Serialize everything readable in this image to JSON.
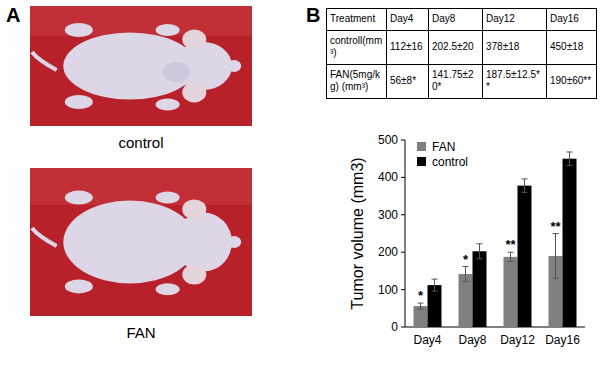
{
  "panels": [
    "A",
    "B"
  ],
  "photos": [
    {
      "caption": "control"
    },
    {
      "caption": "FAN"
    }
  ],
  "table": {
    "header": [
      "Treatment",
      "Day4",
      "Day8",
      "Day12",
      "Day16"
    ],
    "rows": [
      [
        "controll(mm³)",
        "112±16",
        "202.5±20",
        "378±18",
        "450±18"
      ],
      [
        "FAN(5mg/kg) (mm³)",
        "56±8*",
        "141.75±20*",
        "187.5±12.5**",
        "190±60**"
      ]
    ]
  },
  "chart_data": {
    "type": "bar",
    "y_label": "Tumor volume (mm3)",
    "categories": [
      "Day4",
      "Day8",
      "Day12",
      "Day16"
    ],
    "series": [
      {
        "name": "FAN",
        "color": "#808080",
        "values": [
          56,
          141.75,
          187.5,
          190
        ],
        "errors": [
          8,
          20,
          12.5,
          60
        ]
      },
      {
        "name": "control",
        "color": "#000000",
        "values": [
          112,
          202.5,
          378,
          450
        ],
        "errors": [
          16,
          20,
          18,
          18
        ]
      }
    ],
    "annotations": [
      "*",
      "*",
      "**",
      "**"
    ],
    "ylim": [
      0,
      500
    ],
    "yticks": [
      0,
      100,
      200,
      300,
      400,
      500
    ],
    "grid": false,
    "legend": "upper left"
  }
}
